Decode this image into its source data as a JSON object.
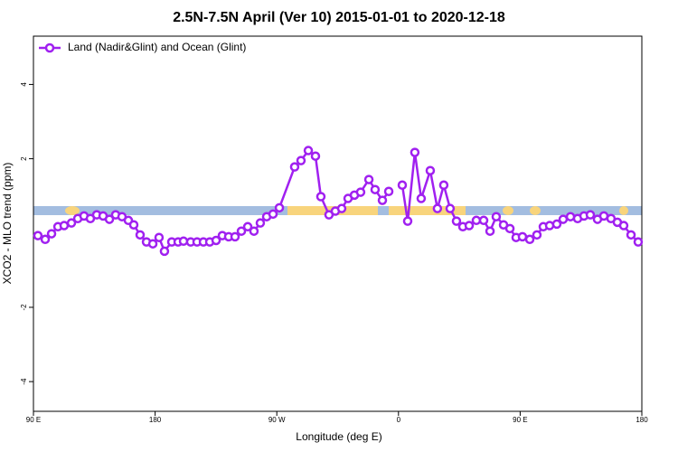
{
  "chart_data": {
    "type": "line",
    "title": "2.5N-7.5N April (Ver 10)   2015-01-01 to 2020-12-18",
    "xlabel": "Longitude (deg E)",
    "ylabel": "XCO2 - MLO trend (ppm)",
    "xlim": [
      90,
      540
    ],
    "ylim": [
      -4.8,
      5.3
    ],
    "xticks": [
      {
        "value": 90,
        "label": "90 E"
      },
      {
        "value": 180,
        "label": "180"
      },
      {
        "value": 270,
        "label": "90 W"
      },
      {
        "value": 360,
        "label": "0"
      },
      {
        "value": 450,
        "label": "90 E"
      },
      {
        "value": 540,
        "label": "180"
      }
    ],
    "yticks": [
      -4,
      -2,
      2,
      4
    ],
    "legend": "top-left",
    "x": [
      93.3,
      98.7,
      103.4,
      108.1,
      112.7,
      118.1,
      122.8,
      127.4,
      132.1,
      136.8,
      141.5,
      146.2,
      150.8,
      155.5,
      160.2,
      164.2,
      168.9,
      173.6,
      178.3,
      182.9,
      186.9,
      192.3,
      197.0,
      201.0,
      206.3,
      211.0,
      215.7,
      220.4,
      225.1,
      229.7,
      234.4,
      239.1,
      243.8,
      248.5,
      253.1,
      257.8,
      262.5,
      267.2,
      271.9,
      283.2,
      287.9,
      293.3,
      298.6,
      302.6,
      308.6,
      313.3,
      318.0,
      322.7,
      327.4,
      332.0,
      338.1,
      342.7,
      348.1,
      352.8,
      357.5,
      362.8,
      366.8,
      372.1,
      376.8,
      383.5,
      388.8,
      393.5,
      398.2,
      402.9,
      407.6,
      412.3,
      417.6,
      423.0,
      427.7,
      432.3,
      437.7,
      442.4,
      447.0,
      451.7,
      457.1,
      462.4,
      467.1,
      471.8,
      477.1,
      481.8,
      487.2,
      492.5,
      497.2,
      501.9,
      507.2,
      511.9,
      517.2,
      521.9,
      526.6,
      532.0,
      537.3
    ],
    "series": [
      {
        "name": "Land (Nadir&Glint) and Ocean (Glint)",
        "color": "#a020f0",
        "values": [
          -0.07,
          -0.17,
          -0.02,
          0.17,
          0.2,
          0.27,
          0.39,
          0.46,
          0.39,
          0.49,
          0.46,
          0.37,
          0.49,
          0.44,
          0.34,
          0.22,
          -0.05,
          -0.24,
          -0.29,
          -0.12,
          -0.49,
          -0.24,
          -0.24,
          -0.22,
          -0.24,
          -0.24,
          -0.24,
          -0.24,
          -0.2,
          -0.07,
          -0.1,
          -0.1,
          0.05,
          0.17,
          0.05,
          0.27,
          0.44,
          0.51,
          0.68,
          1.78,
          1.95,
          2.22,
          2.07,
          0.98,
          0.49,
          0.59,
          0.66,
          0.93,
          1.02,
          1.1,
          1.44,
          1.17,
          0.88,
          1.12,
          null,
          1.29,
          0.32,
          2.17,
          0.93,
          1.68,
          0.66,
          1.29,
          0.66,
          0.32,
          0.17,
          0.2,
          0.34,
          0.34,
          0.05,
          0.44,
          0.22,
          0.12,
          -0.12,
          -0.1,
          -0.17,
          -0.05,
          0.17,
          0.2,
          0.24,
          0.37,
          0.44,
          0.39,
          0.46,
          0.49,
          0.37,
          0.46,
          0.39,
          0.29,
          0.2,
          -0.05,
          -0.24
        ]
      }
    ]
  }
}
